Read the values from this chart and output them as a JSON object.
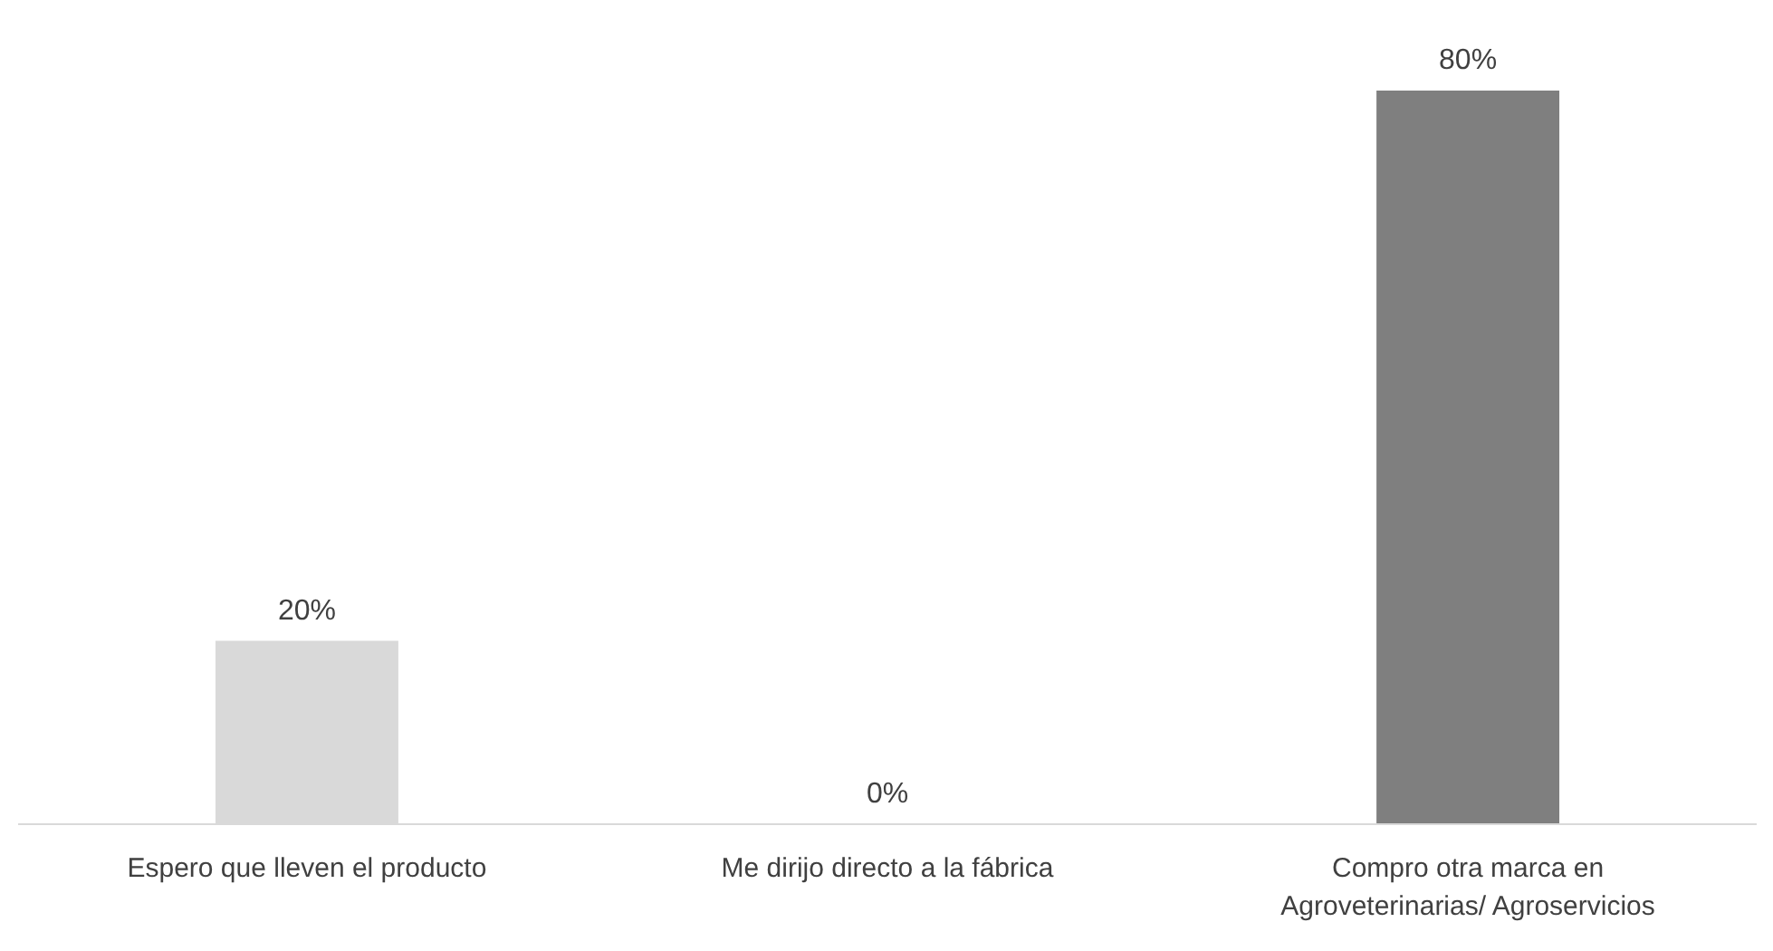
{
  "chart_data": {
    "type": "bar",
    "categories": [
      "Espero que lleven el producto",
      "Me dirijo directo a la fábrica",
      "Compro otra marca en Agroveterinarias/ Agroservicios"
    ],
    "values": [
      20,
      0,
      80
    ],
    "colors": [
      "#d9d9d9",
      "#a5a5a5",
      "#7f7f7f"
    ],
    "value_labels": [
      "20%",
      "0%",
      "80%"
    ]
  }
}
